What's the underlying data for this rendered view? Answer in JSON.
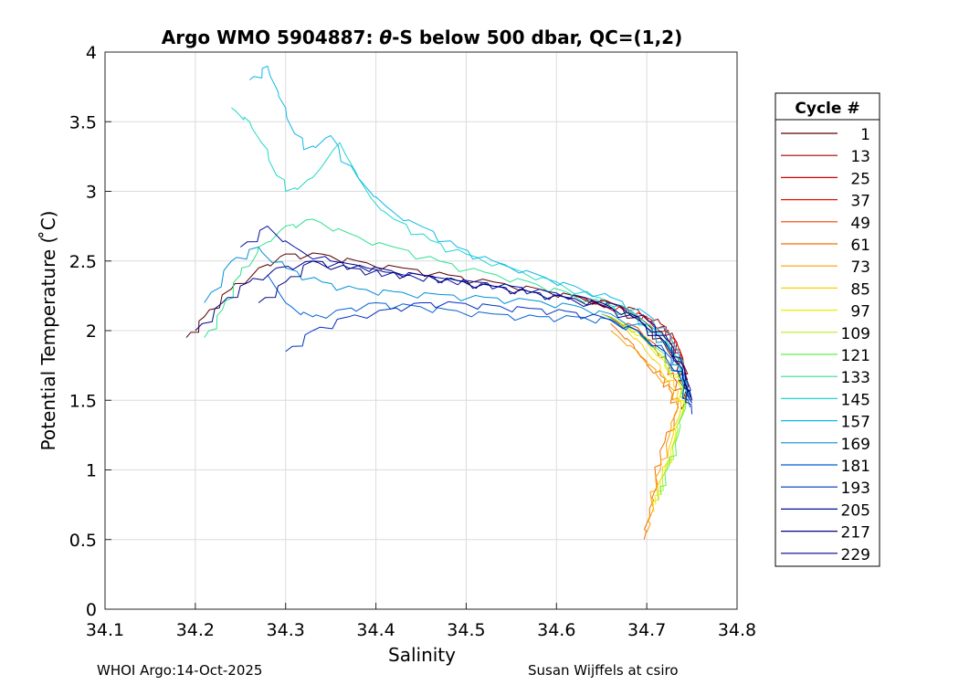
{
  "chart_data": {
    "type": "line",
    "title_pre": "Argo WMO 5904887: ",
    "title_theta": "θ",
    "title_post": "-S below 500 dbar,  QC=(1,2)",
    "xlabel": "Salinity",
    "ylabel": "Potential Temperature ( ̊C)",
    "xlim": [
      34.1,
      34.8
    ],
    "ylim": [
      0,
      4
    ],
    "xticks": [
      "34.1",
      "34.2",
      "34.3",
      "34.4",
      "34.5",
      "34.6",
      "34.7",
      "34.8"
    ],
    "yticks": [
      "0",
      "0.5",
      "1",
      "1.5",
      "2",
      "2.5",
      "3",
      "3.5",
      "4"
    ],
    "grid": true,
    "legend_title": "Cycle #",
    "legend": [
      {
        "label": "1",
        "color": "#5a0000"
      },
      {
        "label": "13",
        "color": "#a00000"
      },
      {
        "label": "25",
        "color": "#c80000"
      },
      {
        "label": "37",
        "color": "#e61000"
      },
      {
        "label": "49",
        "color": "#f04000"
      },
      {
        "label": "61",
        "color": "#f47000"
      },
      {
        "label": "73",
        "color": "#f8a000"
      },
      {
        "label": "85",
        "color": "#f8d000"
      },
      {
        "label": "97",
        "color": "#e8f000"
      },
      {
        "label": "109",
        "color": "#b0f020"
      },
      {
        "label": "121",
        "color": "#60f050"
      },
      {
        "label": "133",
        "color": "#30e090"
      },
      {
        "label": "145",
        "color": "#20d8c8"
      },
      {
        "label": "157",
        "color": "#10b8e8"
      },
      {
        "label": "169",
        "color": "#0090d8"
      },
      {
        "label": "181",
        "color": "#0060d0"
      },
      {
        "label": "193",
        "color": "#0030c0"
      },
      {
        "label": "205",
        "color": "#0010a0"
      },
      {
        "label": "217",
        "color": "#000880"
      },
      {
        "label": "229",
        "color": "#00008c"
      }
    ],
    "series": [
      {
        "name": "1",
        "x": [
          34.19,
          34.21,
          34.24,
          34.27,
          34.3,
          34.34,
          34.38,
          34.43,
          34.48,
          34.53,
          34.58,
          34.62,
          34.66,
          34.7,
          34.72,
          34.735,
          34.74,
          34.742,
          34.74
        ],
        "y": [
          1.95,
          2.1,
          2.3,
          2.45,
          2.55,
          2.55,
          2.5,
          2.45,
          2.4,
          2.35,
          2.3,
          2.25,
          2.2,
          2.05,
          1.9,
          1.75,
          1.6,
          1.5,
          1.45
        ]
      },
      {
        "name": "13",
        "x": [
          34.62,
          34.66,
          34.69,
          34.715,
          34.73,
          34.74,
          34.745,
          34.745
        ],
        "y": [
          2.25,
          2.2,
          2.15,
          2.05,
          1.95,
          1.8,
          1.65,
          1.5
        ]
      },
      {
        "name": "25",
        "x": [
          34.63,
          34.67,
          34.7,
          34.72,
          34.735,
          34.742,
          34.745
        ],
        "y": [
          2.22,
          2.18,
          2.1,
          2.0,
          1.88,
          1.72,
          1.55
        ]
      },
      {
        "name": "37",
        "x": [
          34.64,
          34.68,
          34.705,
          34.725,
          34.738,
          34.745
        ],
        "y": [
          2.2,
          2.15,
          2.08,
          1.97,
          1.82,
          1.62
        ]
      },
      {
        "name": "49",
        "x": [
          34.65,
          34.69,
          34.71,
          34.72,
          34.73,
          34.74
        ],
        "y": [
          2.12,
          2.02,
          1.9,
          1.78,
          1.66,
          1.55
        ]
      },
      {
        "name": "61",
        "x": [
          34.66,
          34.685,
          34.7,
          34.715,
          34.725,
          34.735,
          34.72,
          34.71,
          34.703,
          34.697
        ],
        "y": [
          2.05,
          1.9,
          1.78,
          1.68,
          1.58,
          1.45,
          1.2,
          0.95,
          0.72,
          0.5
        ]
      },
      {
        "name": "73",
        "x": [
          34.66,
          34.69,
          34.71,
          34.725,
          34.735,
          34.725,
          34.715,
          34.705,
          34.7
        ],
        "y": [
          2.0,
          1.85,
          1.72,
          1.6,
          1.48,
          1.25,
          1.0,
          0.78,
          0.55
        ]
      },
      {
        "name": "85",
        "x": [
          34.67,
          34.695,
          34.715,
          34.73,
          34.738,
          34.727,
          34.717,
          34.708
        ],
        "y": [
          2.05,
          1.9,
          1.75,
          1.6,
          1.45,
          1.2,
          0.95,
          0.7
        ]
      },
      {
        "name": "97",
        "x": [
          34.67,
          34.7,
          34.72,
          34.735,
          34.74,
          34.73,
          34.72,
          34.71
        ],
        "y": [
          2.08,
          1.92,
          1.78,
          1.62,
          1.45,
          1.2,
          0.98,
          0.75
        ]
      },
      {
        "name": "109",
        "x": [
          34.66,
          34.7,
          34.72,
          34.735,
          34.742,
          34.732,
          34.722,
          34.713
        ],
        "y": [
          2.1,
          1.95,
          1.8,
          1.64,
          1.48,
          1.22,
          1.0,
          0.78
        ]
      },
      {
        "name": "121",
        "x": [
          34.65,
          34.69,
          34.72,
          34.737,
          34.744,
          34.735,
          34.725,
          34.716
        ],
        "y": [
          2.12,
          2.0,
          1.83,
          1.66,
          1.5,
          1.25,
          1.03,
          0.82
        ]
      },
      {
        "name": "133",
        "x": [
          34.21,
          34.23,
          34.25,
          34.27,
          34.3,
          34.33,
          34.37,
          34.42,
          34.47,
          34.52,
          34.57,
          34.61,
          34.65,
          34.69,
          34.72,
          34.74,
          34.745
        ],
        "y": [
          1.95,
          2.15,
          2.4,
          2.6,
          2.75,
          2.8,
          2.7,
          2.6,
          2.5,
          2.42,
          2.35,
          2.28,
          2.2,
          2.1,
          1.95,
          1.75,
          1.55
        ]
      },
      {
        "name": "145",
        "x": [
          34.24,
          34.26,
          34.28,
          34.3,
          34.33,
          34.36,
          34.39,
          34.42,
          34.46,
          34.5,
          34.55,
          34.6,
          34.64,
          34.68,
          34.71,
          34.735,
          34.745
        ],
        "y": [
          3.6,
          3.5,
          3.3,
          3.0,
          3.1,
          3.35,
          3.0,
          2.8,
          2.65,
          2.55,
          2.45,
          2.35,
          2.25,
          2.15,
          2.0,
          1.8,
          1.6
        ]
      },
      {
        "name": "157",
        "x": [
          34.26,
          34.28,
          34.3,
          34.32,
          34.35,
          34.38,
          34.41,
          34.45,
          34.49,
          34.53,
          34.58,
          34.62,
          34.66,
          34.7,
          34.725,
          34.74,
          34.748
        ],
        "y": [
          3.8,
          3.9,
          3.6,
          3.3,
          3.4,
          3.1,
          2.9,
          2.75,
          2.6,
          2.5,
          2.4,
          2.32,
          2.24,
          2.12,
          1.98,
          1.78,
          1.52
        ]
      },
      {
        "name": "169",
        "x": [
          34.21,
          34.24,
          34.27,
          34.3,
          34.34,
          34.38,
          34.42,
          34.47,
          34.52,
          34.57,
          34.62,
          34.66,
          34.7,
          34.725,
          34.74,
          34.748
        ],
        "y": [
          2.2,
          2.5,
          2.6,
          2.45,
          2.35,
          2.3,
          2.28,
          2.26,
          2.24,
          2.22,
          2.18,
          2.12,
          2.02,
          1.88,
          1.7,
          1.5
        ]
      },
      {
        "name": "181",
        "x": [
          34.28,
          34.3,
          34.33,
          34.36,
          34.4,
          34.44,
          34.48,
          34.53,
          34.58,
          34.62,
          34.66,
          34.69,
          34.72,
          34.738,
          34.748
        ],
        "y": [
          2.4,
          2.2,
          2.1,
          2.15,
          2.2,
          2.18,
          2.15,
          2.12,
          2.1,
          2.1,
          2.08,
          2.0,
          1.85,
          1.65,
          1.45
        ]
      },
      {
        "name": "193",
        "x": [
          34.3,
          34.33,
          34.37,
          34.41,
          34.45,
          34.49,
          34.53,
          34.57,
          34.61,
          34.65,
          34.69,
          34.72,
          34.74,
          34.75
        ],
        "y": [
          1.85,
          2.0,
          2.1,
          2.15,
          2.2,
          2.2,
          2.18,
          2.16,
          2.14,
          2.1,
          2.0,
          1.85,
          1.65,
          1.4
        ]
      },
      {
        "name": "205",
        "x": [
          34.25,
          34.28,
          34.31,
          34.35,
          34.39,
          34.43,
          34.47,
          34.51,
          34.55,
          34.59,
          34.63,
          34.67,
          34.7,
          34.725,
          34.742,
          34.75
        ],
        "y": [
          2.6,
          2.75,
          2.6,
          2.5,
          2.45,
          2.4,
          2.38,
          2.35,
          2.32,
          2.28,
          2.24,
          2.18,
          2.08,
          1.92,
          1.72,
          1.5
        ]
      },
      {
        "name": "217",
        "x": [
          34.27,
          34.3,
          34.33,
          34.37,
          34.41,
          34.45,
          34.49,
          34.53,
          34.57,
          34.61,
          34.65,
          34.69,
          34.72,
          34.74,
          34.75
        ],
        "y": [
          2.2,
          2.35,
          2.5,
          2.45,
          2.42,
          2.4,
          2.36,
          2.32,
          2.28,
          2.24,
          2.2,
          2.1,
          1.95,
          1.75,
          1.5
        ]
      },
      {
        "name": "229",
        "x": [
          34.2,
          34.23,
          34.26,
          34.29,
          34.33,
          34.37,
          34.41,
          34.45,
          34.49,
          34.53,
          34.57,
          34.61,
          34.65,
          34.69,
          34.72,
          34.74,
          34.75
        ],
        "y": [
          2.0,
          2.2,
          2.35,
          2.45,
          2.5,
          2.48,
          2.44,
          2.4,
          2.36,
          2.32,
          2.28,
          2.24,
          2.18,
          2.08,
          1.92,
          1.72,
          1.48
        ]
      }
    ]
  },
  "footer": {
    "left": "WHOI Argo:14-Oct-2025",
    "right": "Susan Wijffels at csiro"
  }
}
